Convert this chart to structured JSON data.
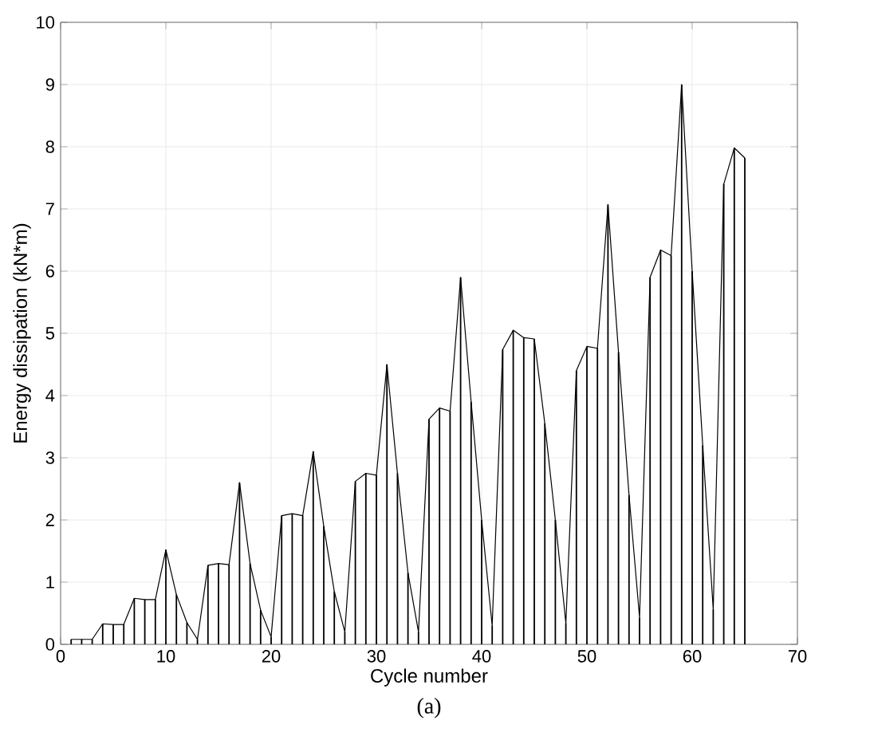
{
  "chart_data": {
    "type": "bar",
    "xlabel": "Cycle number",
    "ylabel": "Energy dissipation (kN*m)",
    "annotations": [
      "(a)"
    ],
    "x": [
      1,
      2,
      3,
      4,
      5,
      6,
      7,
      8,
      9,
      10,
      11,
      12,
      13,
      14,
      15,
      16,
      17,
      18,
      19,
      20,
      21,
      22,
      23,
      24,
      25,
      26,
      27,
      28,
      29,
      30,
      31,
      32,
      33,
      34,
      35,
      36,
      37,
      38,
      39,
      40,
      41,
      42,
      43,
      44,
      45,
      46,
      47,
      48,
      49,
      50,
      51,
      52,
      53,
      54,
      55,
      56,
      57,
      58,
      59,
      60,
      61,
      62,
      63,
      64,
      65
    ],
    "series": [
      {
        "color": "#000000",
        "values": [
          0.08,
          0.08,
          0.08,
          0.33,
          0.32,
          0.32,
          0.74,
          0.72,
          0.72,
          1.52,
          0.8,
          0.35,
          0.08,
          1.27,
          1.3,
          1.28,
          2.6,
          1.3,
          0.55,
          0.12,
          2.07,
          2.1,
          2.07,
          3.1,
          1.9,
          0.85,
          0.2,
          2.62,
          2.75,
          2.72,
          4.5,
          2.75,
          1.15,
          0.2,
          3.62,
          3.8,
          3.75,
          5.9,
          3.9,
          2.0,
          0.3,
          4.74,
          5.05,
          4.93,
          4.91,
          3.55,
          2.0,
          0.34,
          4.4,
          4.79,
          4.76,
          7.07,
          4.7,
          2.4,
          0.43,
          5.9,
          6.34,
          6.25,
          9.0,
          6.0,
          3.2,
          0.56,
          7.4,
          7.98,
          7.82
        ]
      },
      {
        "type": "line",
        "color": "#000000",
        "values": [
          0.08,
          0.08,
          0.08,
          0.33,
          0.32,
          0.32,
          0.74,
          0.72,
          0.72,
          1.52,
          0.8,
          0.35,
          0.08,
          1.27,
          1.3,
          1.28,
          2.6,
          1.3,
          0.55,
          0.12,
          2.07,
          2.1,
          2.07,
          3.1,
          1.9,
          0.85,
          0.2,
          2.62,
          2.75,
          2.72,
          4.5,
          2.75,
          1.15,
          0.2,
          3.62,
          3.8,
          3.75,
          5.9,
          3.9,
          2.0,
          0.3,
          4.74,
          5.05,
          4.93,
          4.91,
          3.55,
          2.0,
          0.34,
          4.4,
          4.79,
          4.76,
          7.07,
          4.7,
          2.4,
          0.43,
          5.9,
          6.34,
          6.25,
          9.0,
          6.0,
          3.2,
          0.56,
          7.4,
          7.98,
          7.82
        ]
      }
    ],
    "xlim": [
      0,
      70
    ],
    "xticks": [
      0,
      10,
      20,
      30,
      40,
      50,
      60,
      70
    ],
    "ylim": [
      0,
      10
    ],
    "yticks": [
      0,
      1,
      2,
      3,
      4,
      5,
      6,
      7,
      8,
      9,
      10
    ],
    "grid": true,
    "line_style": "solid"
  }
}
